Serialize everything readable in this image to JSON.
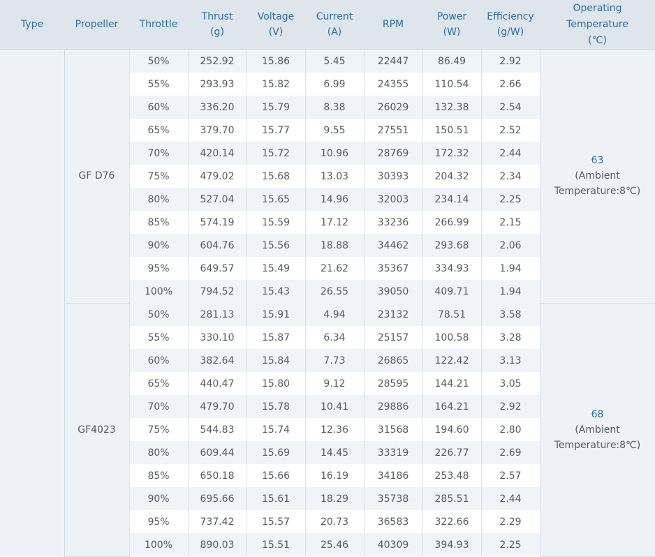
{
  "headers": {
    "type": "Type",
    "propeller": "Propeller",
    "throttle": "Throttle",
    "thrust": "Thrust",
    "thrust_unit": "(g)",
    "voltage": "Voltage",
    "voltage_unit": "(V)",
    "current": "Current",
    "current_unit": "(A)",
    "rpm": "RPM",
    "power": "Power",
    "power_unit": "(W)",
    "efficiency": "Efficiency",
    "efficiency_unit": "(g/W)",
    "operating_line1": "Operating",
    "operating_line2": "Temperature",
    "operating_unit": "(℃)"
  },
  "groups": [
    {
      "propeller": "GF D76",
      "operating_temp": "63",
      "operating_note_line1": "(Ambient",
      "operating_note_line2": "Temperature:8℃)",
      "rows": [
        [
          "50%",
          "252.92",
          "15.86",
          "5.45",
          "22447",
          "86.49",
          "2.92"
        ],
        [
          "55%",
          "293.93",
          "15.82",
          "6.99",
          "24355",
          "110.54",
          "2.66"
        ],
        [
          "60%",
          "336.20",
          "15.79",
          "8.38",
          "26029",
          "132.38",
          "2.54"
        ],
        [
          "65%",
          "379.70",
          "15.77",
          "9.55",
          "27551",
          "150.51",
          "2.52"
        ],
        [
          "70%",
          "420.14",
          "15.72",
          "10.96",
          "28769",
          "172.32",
          "2.44"
        ],
        [
          "75%",
          "479.02",
          "15.68",
          "13.03",
          "30393",
          "204.32",
          "2.34"
        ],
        [
          "80%",
          "527.04",
          "15.65",
          "14.96",
          "32003",
          "234.14",
          "2.25"
        ],
        [
          "85%",
          "574.19",
          "15.59",
          "17.12",
          "33236",
          "266.99",
          "2.15"
        ],
        [
          "90%",
          "604.76",
          "15.56",
          "18.88",
          "34462",
          "293.68",
          "2.06"
        ],
        [
          "95%",
          "649.57",
          "15.49",
          "21.62",
          "35367",
          "334.93",
          "1.94"
        ],
        [
          "100%",
          "794.52",
          "15.43",
          "26.55",
          "39050",
          "409.71",
          "1.94"
        ]
      ]
    },
    {
      "propeller": "GF4023",
      "operating_temp": "68",
      "operating_note_line1": "(Ambient",
      "operating_note_line2": "Temperature:8℃)",
      "rows": [
        [
          "50%",
          "281.13",
          "15.91",
          "4.94",
          "23132",
          "78.51",
          "3.58"
        ],
        [
          "55%",
          "330.10",
          "15.87",
          "6.34",
          "25157",
          "100.58",
          "3.28"
        ],
        [
          "60%",
          "382.64",
          "15.84",
          "7.73",
          "26865",
          "122.42",
          "3.13"
        ],
        [
          "65%",
          "440.47",
          "15.80",
          "9.12",
          "28595",
          "144.21",
          "3.05"
        ],
        [
          "70%",
          "479.70",
          "15.78",
          "10.41",
          "29886",
          "164.21",
          "2.92"
        ],
        [
          "75%",
          "544.83",
          "15.74",
          "12.36",
          "31568",
          "194.60",
          "2.80"
        ],
        [
          "80%",
          "609.44",
          "15.69",
          "14.45",
          "33319",
          "226.77",
          "2.69"
        ],
        [
          "85%",
          "650.18",
          "15.66",
          "16.19",
          "34186",
          "253.48",
          "2.57"
        ],
        [
          "90%",
          "695.66",
          "15.61",
          "18.29",
          "35738",
          "285.51",
          "2.44"
        ],
        [
          "95%",
          "737.42",
          "15.57",
          "20.73",
          "36583",
          "322.66",
          "2.29"
        ],
        [
          "100%",
          "890.03",
          "15.51",
          "25.46",
          "40309",
          "394.93",
          "2.25"
        ]
      ]
    }
  ]
}
